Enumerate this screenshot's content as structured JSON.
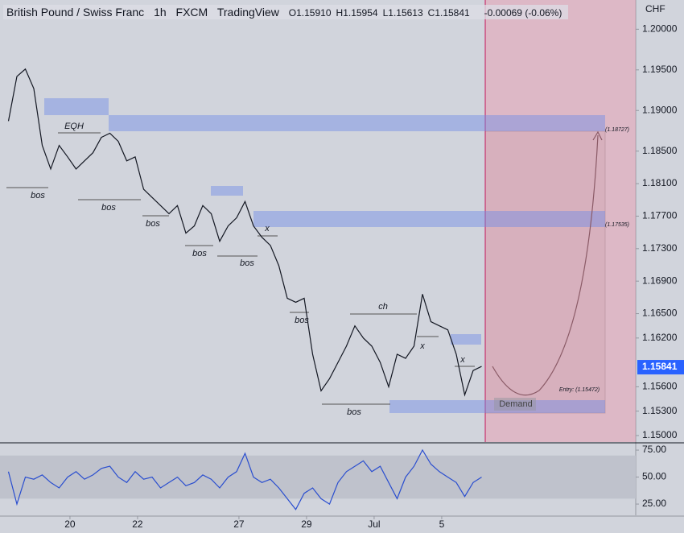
{
  "header": {
    "symbol": "British Pound / Swiss Franc",
    "interval": "1h",
    "exchange": "FXCM",
    "platform": "TradingView",
    "ohlc": [
      {
        "key": "O",
        "value": "1.15910"
      },
      {
        "key": "H",
        "value": "1.15954"
      },
      {
        "key": "L",
        "value": "1.15613"
      },
      {
        "key": "C",
        "value": "1.15841"
      }
    ],
    "change": "-0.00069 (-0.06%)"
  },
  "chart_data": [
    {
      "type": "line",
      "color": "#131722",
      "currency": "CHF",
      "x": [
        0.25,
        0.5,
        0.75,
        1,
        1.25,
        1.5,
        1.75,
        2,
        2.25,
        2.5,
        2.75,
        3,
        3.25,
        3.5,
        3.75,
        4,
        4.25,
        4.5,
        4.75,
        5,
        5.25,
        5.5,
        5.75,
        6,
        6.25,
        6.5,
        6.75,
        7,
        7.25,
        7.5,
        7.75,
        8,
        8.25,
        8.5,
        8.75,
        9,
        9.25,
        9.5,
        9.75,
        10,
        10.25,
        10.5,
        10.75,
        11,
        11.25,
        11.5,
        11.75,
        12,
        12.25,
        12.5,
        12.75,
        13,
        13.25,
        13.5,
        13.75,
        14,
        14.25
      ],
      "values": [
        1.1887,
        1.1942,
        1.1951,
        1.1927,
        1.1857,
        1.1828,
        1.1857,
        1.1843,
        1.1828,
        1.1838,
        1.1848,
        1.1867,
        1.1872,
        1.1862,
        1.1838,
        1.1843,
        1.1803,
        1.1793,
        1.1783,
        1.1773,
        1.1783,
        1.1749,
        1.1758,
        1.1783,
        1.1773,
        1.1739,
        1.1758,
        1.1768,
        1.1788,
        1.1758,
        1.1744,
        1.1734,
        1.1709,
        1.1669,
        1.1664,
        1.1669,
        1.16,
        1.1555,
        1.157,
        1.159,
        1.161,
        1.1635,
        1.162,
        1.161,
        1.159,
        1.156,
        1.16,
        1.1595,
        1.161,
        1.1674,
        1.164,
        1.1635,
        1.163,
        1.16,
        1.155,
        1.158,
        1.1585
      ],
      "xlim": [
        0,
        18.81
      ],
      "ylim": [
        1.1492,
        1.2036
      ],
      "yticks": [
        {
          "value": 1.2,
          "label": "1.20000"
        },
        {
          "value": 1.195,
          "label": "1.19500"
        },
        {
          "value": 1.19,
          "label": "1.19000"
        },
        {
          "value": 1.185,
          "label": "1.18500"
        },
        {
          "value": 1.181,
          "label": "1.18100"
        },
        {
          "value": 1.177,
          "label": "1.17700"
        },
        {
          "value": 1.173,
          "label": "1.17300"
        },
        {
          "value": 1.169,
          "label": "1.16900"
        },
        {
          "value": 1.165,
          "label": "1.16500"
        },
        {
          "value": 1.162,
          "label": "1.16200"
        },
        {
          "value": 1.156,
          "label": "1.15600"
        },
        {
          "value": 1.153,
          "label": "1.15300"
        },
        {
          "value": 1.15,
          "label": "1.15000"
        }
      ],
      "last_price": {
        "value": 1.15841,
        "label": "1.15841"
      },
      "annotations": [
        "EQH",
        "bos",
        "bos",
        "bos",
        "bos",
        "bos",
        "bos",
        "bos",
        "x",
        "x",
        "x",
        "ch",
        "(1.18727)",
        "(1.17535)",
        "Entry: (1.15472)",
        "Demand"
      ]
    },
    {
      "type": "line",
      "color": "#2a4ecf",
      "x": [
        0.25,
        0.5,
        0.75,
        1,
        1.25,
        1.5,
        1.75,
        2,
        2.25,
        2.5,
        2.75,
        3,
        3.25,
        3.5,
        3.75,
        4,
        4.25,
        4.5,
        4.75,
        5,
        5.25,
        5.5,
        5.75,
        6,
        6.25,
        6.5,
        6.75,
        7,
        7.25,
        7.5,
        7.75,
        8,
        8.25,
        8.5,
        8.75,
        9,
        9.25,
        9.5,
        9.75,
        10,
        10.25,
        10.5,
        10.75,
        11,
        11.25,
        11.5,
        11.75,
        12,
        12.25,
        12.5,
        12.75,
        13,
        13.25,
        13.5,
        13.75,
        14,
        14.25
      ],
      "values": [
        55,
        25,
        50,
        48,
        52,
        45,
        40,
        50,
        55,
        48,
        52,
        58,
        60,
        50,
        45,
        55,
        48,
        50,
        40,
        45,
        50,
        42,
        45,
        52,
        48,
        40,
        50,
        55,
        72,
        50,
        45,
        48,
        40,
        30,
        20,
        35,
        40,
        30,
        25,
        45,
        55,
        60,
        65,
        55,
        60,
        45,
        30,
        50,
        60,
        75,
        62,
        55,
        50,
        45,
        32,
        45,
        50
      ],
      "band": [
        30,
        70
      ],
      "xlim": [
        0,
        18.81
      ],
      "ylim": [
        14.6,
        81
      ],
      "yticks": [
        {
          "value": 75,
          "label": "75.00"
        },
        {
          "value": 50,
          "label": "50.00"
        },
        {
          "value": 25,
          "label": "25.00"
        }
      ],
      "xticks": [
        {
          "value": 2.07,
          "label": "20"
        },
        {
          "value": 4.07,
          "label": "22"
        },
        {
          "value": 7.07,
          "label": "27"
        },
        {
          "value": 9.07,
          "label": "29"
        },
        {
          "value": 11.07,
          "label": "Jul"
        },
        {
          "value": 13.07,
          "label": "5"
        }
      ]
    }
  ]
}
